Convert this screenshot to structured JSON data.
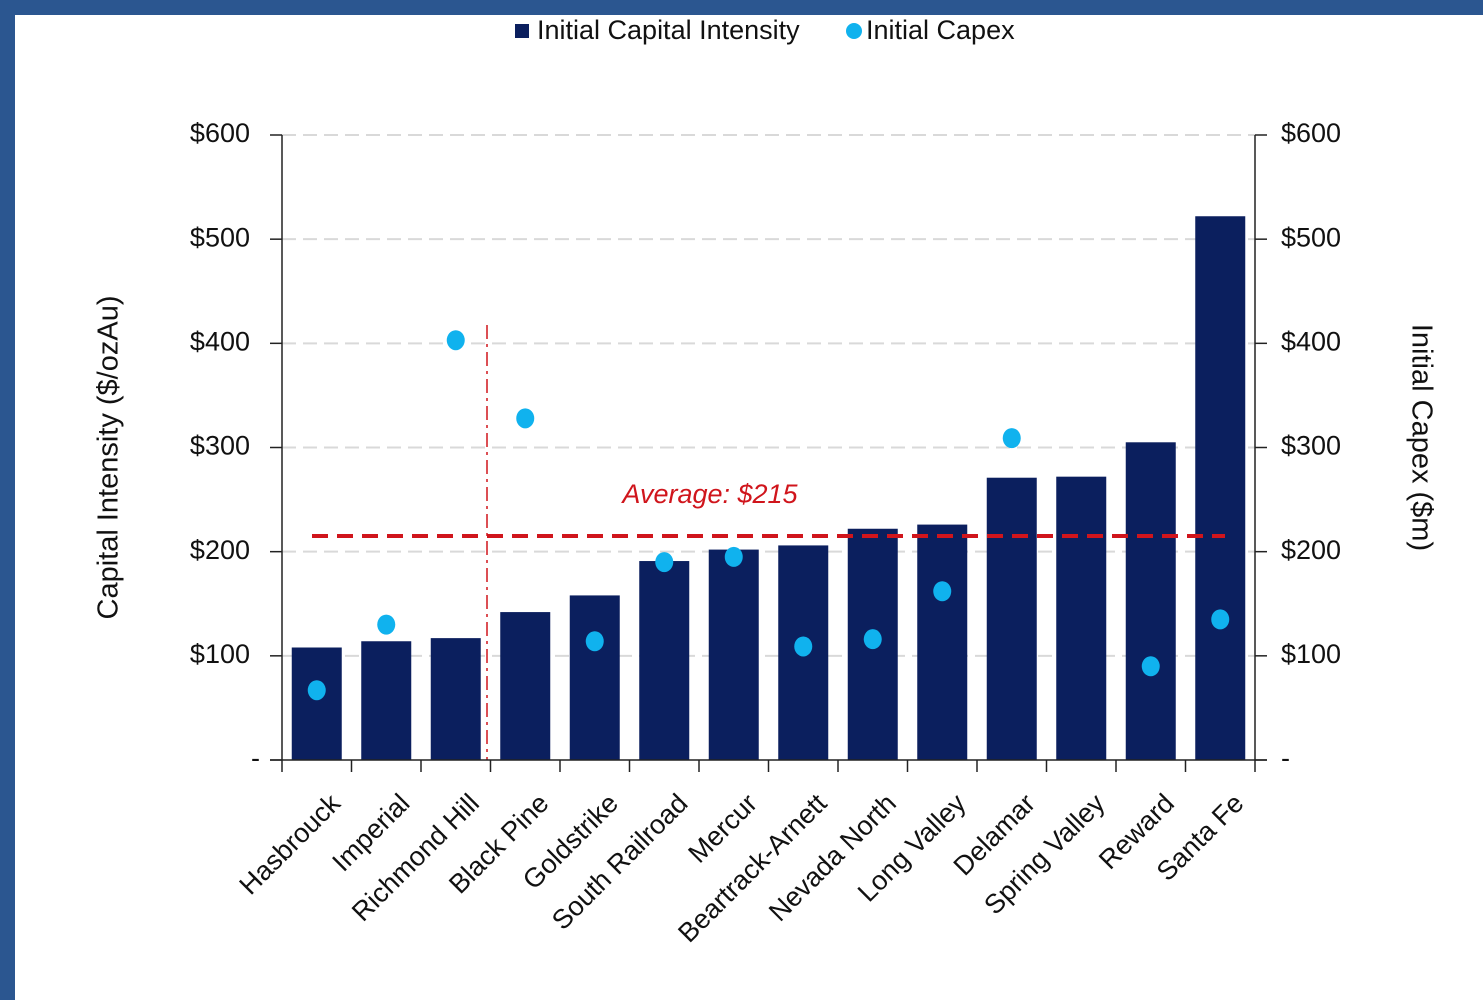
{
  "chart_data": {
    "type": "bar",
    "categories": [
      "Hasbrouck",
      "Imperial",
      "Richmond Hill",
      "Black Pine",
      "Goldstrike",
      "South Railroad",
      "Mercur",
      "Beartrack-Arnett",
      "Nevada North",
      "Long Valley",
      "Delamar",
      "Spring Valley",
      "Reward",
      "Santa Fe"
    ],
    "series": [
      {
        "name": "Initial Capital Intensity",
        "type": "bar",
        "color": "#0b1f5e",
        "values": [
          108,
          114,
          117,
          142,
          158,
          191,
          202,
          206,
          222,
          226,
          271,
          272,
          305,
          522
        ]
      },
      {
        "name": "Initial Capex",
        "type": "scatter",
        "axis": "y2",
        "color": "#10b2ee",
        "values": [
          67,
          130,
          403,
          328,
          114,
          190,
          195,
          109,
          116,
          162,
          309,
          null,
          90,
          135
        ]
      }
    ],
    "y_label": "Capital Intensity ($/ozAu)",
    "y2_label": "Initial Capex ($m)",
    "ylim": [
      0,
      600
    ],
    "yticks": [
      {
        "value": 0,
        "label": "-"
      },
      {
        "value": 100,
        "label": "$100"
      },
      {
        "value": 200,
        "label": "$200"
      },
      {
        "value": 300,
        "label": "$300"
      },
      {
        "value": 400,
        "label": "$400"
      },
      {
        "value": 500,
        "label": "$500"
      },
      {
        "value": 600,
        "label": "$600"
      }
    ],
    "y2lim": [
      0,
      600
    ],
    "y2ticks": [
      {
        "value": 0,
        "label": "-"
      },
      {
        "value": 100,
        "label": "$100"
      },
      {
        "value": 200,
        "label": "$200"
      },
      {
        "value": 300,
        "label": "$300"
      },
      {
        "value": 400,
        "label": "$400"
      },
      {
        "value": 500,
        "label": "$500"
      },
      {
        "value": 600,
        "label": "$600"
      }
    ],
    "average": {
      "value": 215,
      "label": "Average: $215",
      "color": "#d0151c"
    },
    "grid": true
  }
}
